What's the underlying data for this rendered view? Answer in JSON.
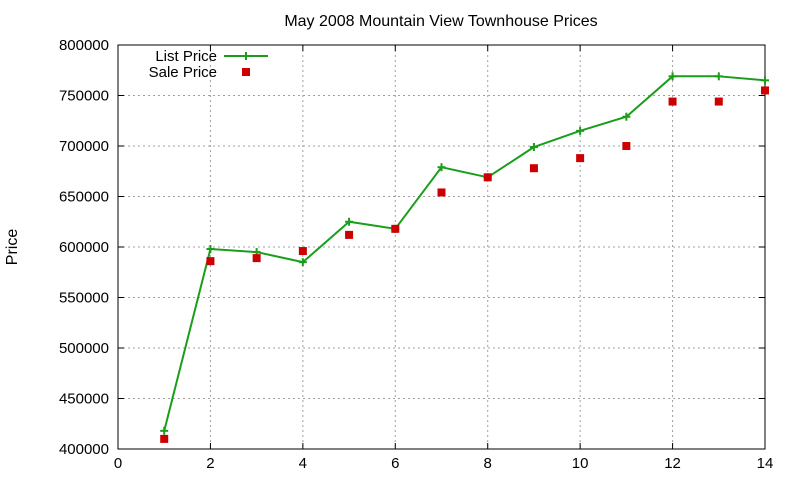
{
  "chart_data": {
    "type": "line",
    "title": "May 2008 Mountain View Townhouse Prices",
    "xlabel": "",
    "ylabel": "Price",
    "xlim": [
      0,
      14
    ],
    "ylim": [
      400000,
      800000
    ],
    "x_ticks": [
      "0",
      "2",
      "4",
      "6",
      "8",
      "10",
      "12",
      "14"
    ],
    "y_ticks": [
      "400000",
      "450000",
      "500000",
      "550000",
      "600000",
      "650000",
      "700000",
      "750000",
      "800000"
    ],
    "grid": true,
    "legend_position": "top-left",
    "series": [
      {
        "name": "List Price",
        "style": "line+crosses",
        "color": "#1a9e1a",
        "points": [
          [
            1,
            418000
          ],
          [
            2,
            598000
          ],
          [
            3,
            595000
          ],
          [
            4,
            585000
          ],
          [
            5,
            625000
          ],
          [
            6,
            618000
          ],
          [
            7,
            679000
          ],
          [
            8,
            669000
          ],
          [
            9,
            699000
          ],
          [
            10,
            715000
          ],
          [
            11,
            729000
          ],
          [
            12,
            769000
          ],
          [
            13,
            769000
          ],
          [
            14,
            765000
          ]
        ]
      },
      {
        "name": "Sale Price",
        "style": "squares",
        "color": "#cc0000",
        "points": [
          [
            1,
            410000
          ],
          [
            2,
            586000
          ],
          [
            3,
            589000
          ],
          [
            4,
            596000
          ],
          [
            5,
            612000
          ],
          [
            6,
            618000
          ],
          [
            7,
            654000
          ],
          [
            8,
            669000
          ],
          [
            9,
            678000
          ],
          [
            10,
            688000
          ],
          [
            11,
            700000
          ],
          [
            12,
            744000
          ],
          [
            13,
            744000
          ],
          [
            14,
            755000
          ]
        ]
      }
    ]
  }
}
